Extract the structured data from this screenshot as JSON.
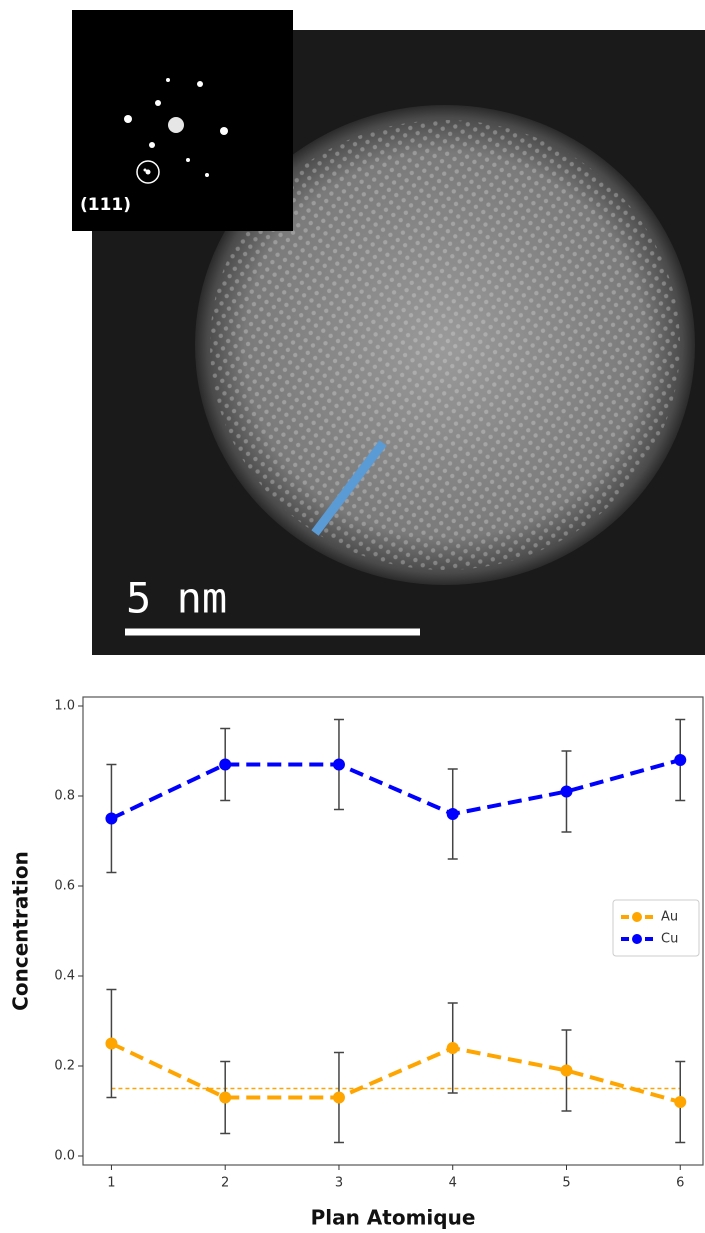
{
  "image": {
    "inset_label": "(111)",
    "scale_label": "5 nm"
  },
  "chart_data": {
    "type": "errorbar-line",
    "x_label": "Plan Atomique",
    "y_label": "Concentration",
    "x": [
      1,
      2,
      3,
      4,
      5,
      6
    ],
    "series": [
      {
        "name": "Au",
        "color": "#ffa500",
        "values": [
          0.25,
          0.13,
          0.13,
          0.24,
          0.19,
          0.12
        ],
        "errors": [
          0.12,
          0.08,
          0.1,
          0.1,
          0.09,
          0.09
        ]
      },
      {
        "name": "Cu",
        "color": "#0000ff",
        "values": [
          0.75,
          0.87,
          0.87,
          0.76,
          0.81,
          0.88
        ],
        "errors": [
          0.12,
          0.08,
          0.1,
          0.1,
          0.09,
          0.09
        ]
      }
    ],
    "reference_line": 0.15,
    "xlim": [
      0.75,
      6.2
    ],
    "ylim": [
      -0.02,
      1.02
    ],
    "xticks": [
      1,
      2,
      3,
      4,
      5,
      6
    ],
    "yticks": [
      {
        "value": 0,
        "label": "0.0"
      },
      0.2,
      0.4,
      0.6,
      0.8,
      {
        "value": 1,
        "label": "1.0"
      }
    ],
    "legend": "center right",
    "grid": false
  }
}
